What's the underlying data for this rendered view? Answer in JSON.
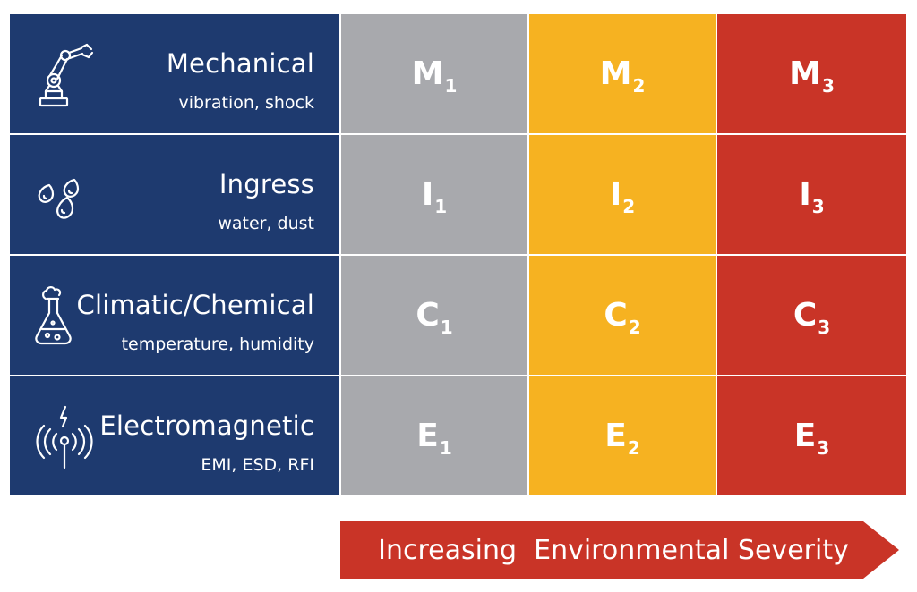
{
  "rows": [
    {
      "icon": "robot-arm-icon",
      "title": "Mechanical",
      "subtitle": "vibration, shock",
      "levels": [
        {
          "letter": "M",
          "index": "1"
        },
        {
          "letter": "M",
          "index": "2"
        },
        {
          "letter": "M",
          "index": "3"
        }
      ]
    },
    {
      "icon": "water-drops-icon",
      "title": "Ingress",
      "subtitle": "water, dust",
      "levels": [
        {
          "letter": "I",
          "index": "1"
        },
        {
          "letter": "I",
          "index": "2"
        },
        {
          "letter": "I",
          "index": "3"
        }
      ]
    },
    {
      "icon": "flask-icon",
      "title": "Climatic/Chemical",
      "subtitle": "temperature, humidity",
      "levels": [
        {
          "letter": "C",
          "index": "1"
        },
        {
          "letter": "C",
          "index": "2"
        },
        {
          "letter": "C",
          "index": "3"
        }
      ]
    },
    {
      "icon": "antenna-signal-icon",
      "title": "Electromagnetic",
      "subtitle": "EMI, ESD, RFI",
      "levels": [
        {
          "letter": "E",
          "index": "1"
        },
        {
          "letter": "E",
          "index": "2"
        },
        {
          "letter": "E",
          "index": "3"
        }
      ]
    }
  ],
  "arrow": {
    "label": "Increasing  Environmental Severity"
  },
  "colors": {
    "category_bg": "#1e3a6f",
    "level_1": "#a8a9ad",
    "level_2": "#f6b221",
    "level_3": "#c93427",
    "arrow": "#c93427"
  }
}
